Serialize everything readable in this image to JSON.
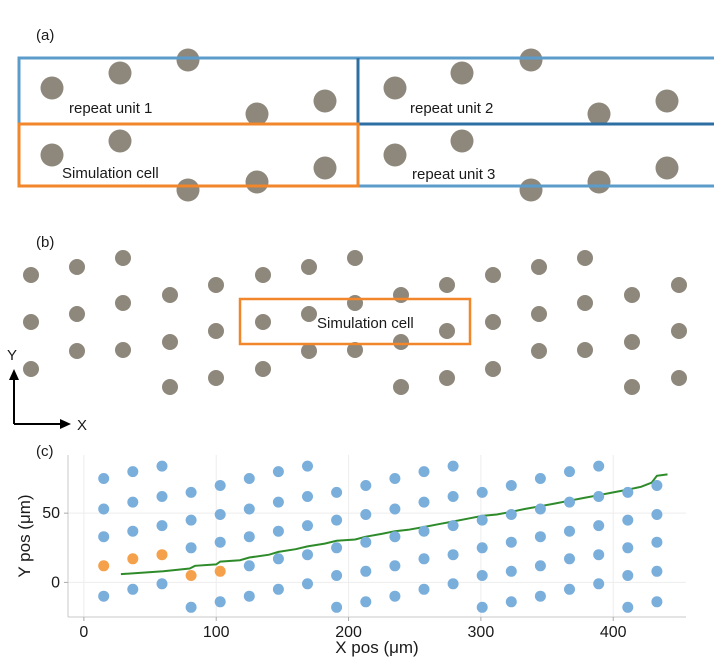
{
  "panel_a": {
    "label": "(a)",
    "unit1_label": "repeat unit 1",
    "unit2_label": "repeat unit 2",
    "unit3_label": "repeat unit 3",
    "sim_cell_label": "Simulation cell"
  },
  "panel_b": {
    "label": "(b)",
    "sim_cell_label": "Simulation cell",
    "axis_y_label": "Y",
    "axis_x_label": "X"
  },
  "panel_c": {
    "label": "(c)"
  },
  "colors": {
    "pillar_gray": "#8e877b",
    "unit_blue": "#5b9ccb",
    "sim_orange": "#f2862a",
    "dot_blue": "#7aaedb",
    "dot_orange": "#f5a04a",
    "path_green": "#2e8b2a"
  },
  "chart_data": {
    "type": "scatter",
    "xlabel": "X pos (μm)",
    "ylabel": "Y pos (μm)",
    "xlim": [
      -12,
      455
    ],
    "ylim": [
      -25,
      92
    ],
    "x_ticks": [
      0,
      100,
      200,
      300,
      400
    ],
    "y_ticks": [
      0,
      50
    ],
    "x_tick_labels": [
      "0",
      "100",
      "200",
      "300",
      "400"
    ],
    "y_tick_labels": [
      "0",
      "50"
    ],
    "grid": true,
    "series": [
      {
        "name": "pillars",
        "color": "#7aaedb",
        "points": [
          [
            15,
            75
          ],
          [
            37,
            80
          ],
          [
            59,
            84
          ],
          [
            81,
            65
          ],
          [
            103,
            70
          ],
          [
            125,
            75
          ],
          [
            147,
            80
          ],
          [
            169,
            84
          ],
          [
            191,
            65
          ],
          [
            213,
            70
          ],
          [
            235,
            75
          ],
          [
            257,
            80
          ],
          [
            279,
            84
          ],
          [
            301,
            65
          ],
          [
            323,
            70
          ],
          [
            345,
            75
          ],
          [
            367,
            80
          ],
          [
            389,
            84
          ],
          [
            411,
            65
          ],
          [
            433,
            70
          ],
          [
            15,
            53
          ],
          [
            37,
            58
          ],
          [
            59,
            62
          ],
          [
            81,
            45
          ],
          [
            103,
            49
          ],
          [
            125,
            53
          ],
          [
            147,
            58
          ],
          [
            169,
            62
          ],
          [
            191,
            45
          ],
          [
            213,
            49
          ],
          [
            235,
            53
          ],
          [
            257,
            58
          ],
          [
            279,
            62
          ],
          [
            301,
            45
          ],
          [
            323,
            49
          ],
          [
            345,
            53
          ],
          [
            367,
            58
          ],
          [
            389,
            62
          ],
          [
            411,
            45
          ],
          [
            433,
            49
          ],
          [
            15,
            33
          ],
          [
            37,
            37
          ],
          [
            59,
            41
          ],
          [
            81,
            25
          ],
          [
            103,
            29
          ],
          [
            125,
            33
          ],
          [
            147,
            37
          ],
          [
            169,
            41
          ],
          [
            191,
            25
          ],
          [
            213,
            29
          ],
          [
            235,
            33
          ],
          [
            257,
            37
          ],
          [
            279,
            41
          ],
          [
            301,
            25
          ],
          [
            323,
            29
          ],
          [
            345,
            33
          ],
          [
            367,
            37
          ],
          [
            389,
            41
          ],
          [
            411,
            25
          ],
          [
            433,
            29
          ],
          [
            125,
            12
          ],
          [
            147,
            17
          ],
          [
            169,
            20
          ],
          [
            191,
            5
          ],
          [
            213,
            8
          ],
          [
            235,
            12
          ],
          [
            257,
            17
          ],
          [
            279,
            20
          ],
          [
            301,
            5
          ],
          [
            323,
            8
          ],
          [
            345,
            12
          ],
          [
            367,
            17
          ],
          [
            389,
            20
          ],
          [
            411,
            5
          ],
          [
            433,
            8
          ],
          [
            15,
            -10
          ],
          [
            37,
            -5
          ],
          [
            59,
            -1
          ],
          [
            81,
            -18
          ],
          [
            103,
            -14
          ],
          [
            125,
            -10
          ],
          [
            147,
            -5
          ],
          [
            169,
            -1
          ],
          [
            191,
            -18
          ],
          [
            213,
            -14
          ],
          [
            235,
            -10
          ],
          [
            257,
            -5
          ],
          [
            279,
            -1
          ],
          [
            301,
            -18
          ],
          [
            323,
            -14
          ],
          [
            345,
            -10
          ],
          [
            367,
            -5
          ],
          [
            389,
            -1
          ],
          [
            411,
            -18
          ],
          [
            433,
            -14
          ]
        ]
      },
      {
        "name": "simulation cell",
        "color": "#f5a04a",
        "points": [
          [
            15,
            12
          ],
          [
            37,
            17
          ],
          [
            59,
            20
          ],
          [
            81,
            5
          ],
          [
            103,
            8
          ]
        ]
      },
      {
        "name": "trajectory",
        "color": "#2e8b2a",
        "type": "line",
        "points": [
          [
            28,
            6
          ],
          [
            60,
            8
          ],
          [
            80,
            10
          ],
          [
            84,
            12
          ],
          [
            100,
            13
          ],
          [
            103,
            15
          ],
          [
            118,
            16
          ],
          [
            125,
            18
          ],
          [
            140,
            20
          ],
          [
            147,
            22
          ],
          [
            160,
            24
          ],
          [
            169,
            26
          ],
          [
            182,
            28
          ],
          [
            191,
            30
          ],
          [
            205,
            31
          ],
          [
            213,
            33
          ],
          [
            225,
            35
          ],
          [
            235,
            37
          ],
          [
            245,
            38
          ],
          [
            257,
            40
          ],
          [
            268,
            42
          ],
          [
            279,
            44
          ],
          [
            290,
            46
          ],
          [
            301,
            48
          ],
          [
            312,
            49
          ],
          [
            323,
            51
          ],
          [
            333,
            53
          ],
          [
            345,
            55
          ],
          [
            356,
            57
          ],
          [
            367,
            59
          ],
          [
            378,
            61
          ],
          [
            389,
            63
          ],
          [
            400,
            65
          ],
          [
            411,
            67
          ],
          [
            421,
            69
          ],
          [
            429,
            72
          ],
          [
            433,
            77
          ],
          [
            441,
            78
          ]
        ]
      }
    ]
  }
}
